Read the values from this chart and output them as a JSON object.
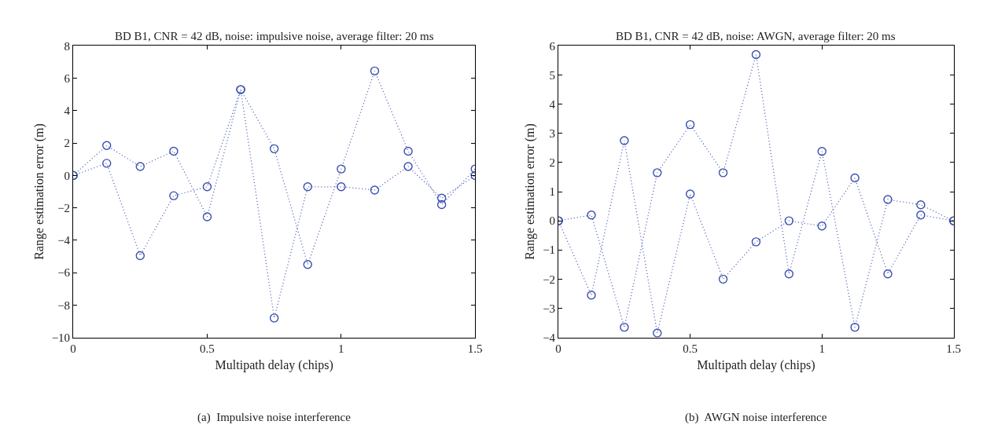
{
  "chart_data": [
    {
      "type": "line",
      "title": "BD B1, CNR = 42 dB, noise: impulsive noise, average filter: 20 ms",
      "xlabel": "Multipath delay (chips)",
      "ylabel": "Range estimation error (m)",
      "annotations": [
        "(a)  Impulsive noise interference"
      ],
      "x": [
        0,
        0.125,
        0.25,
        0.375,
        0.5,
        0.625,
        0.75,
        0.875,
        1.0,
        1.125,
        1.25,
        1.375,
        1.5
      ],
      "series": [
        {
          "color": "#3a4fb0",
          "values": [
            0,
            1.85,
            0.55,
            1.5,
            -2.55,
            5.3,
            1.65,
            -5.5,
            0.4,
            6.45,
            1.5,
            -1.8,
            0.4
          ]
        },
        {
          "color": "#3a4fb0",
          "values": [
            0,
            0.75,
            -4.95,
            -1.25,
            -0.7,
            5.3,
            -8.8,
            -0.7,
            -0.7,
            -0.9,
            0.55,
            -1.4,
            0
          ]
        }
      ],
      "xlim": [
        0,
        1.5
      ],
      "xticks": [
        0,
        0.5,
        1,
        1.5
      ],
      "ylim": [
        -10,
        8
      ],
      "yticks": [
        -10,
        -8,
        -6,
        -4,
        -2,
        0,
        2,
        4,
        6,
        8
      ],
      "marker": "circle",
      "line_style": "dotted"
    },
    {
      "type": "line",
      "title": "BD B1, CNR = 42 dB, noise: AWGN, average filter: 20 ms",
      "xlabel": "Multipath delay (chips)",
      "ylabel": "Range estimation error (m)",
      "annotations": [
        "(b)  AWGN noise interference"
      ],
      "x": [
        0,
        0.125,
        0.25,
        0.375,
        0.5,
        0.625,
        0.75,
        0.875,
        1.0,
        1.125,
        1.25,
        1.375,
        1.5
      ],
      "series": [
        {
          "color": "#3a4fb0",
          "values": [
            0,
            0.2,
            -3.65,
            1.65,
            3.3,
            1.65,
            5.7,
            -1.82,
            2.38,
            -3.65,
            0.73,
            0.55,
            0
          ]
        },
        {
          "color": "#3a4fb0",
          "values": [
            0,
            -2.55,
            2.75,
            -3.85,
            0.92,
            -2.0,
            -0.72,
            0,
            -0.18,
            1.47,
            -1.82,
            0.2,
            0
          ]
        }
      ],
      "xlim": [
        0,
        1.5
      ],
      "xticks": [
        0,
        0.5,
        1,
        1.5
      ],
      "ylim": [
        -4,
        6
      ],
      "yticks": [
        -4,
        -3,
        -2,
        -1,
        0,
        1,
        2,
        3,
        4,
        5,
        6
      ],
      "marker": "circle",
      "line_style": "dotted"
    }
  ]
}
